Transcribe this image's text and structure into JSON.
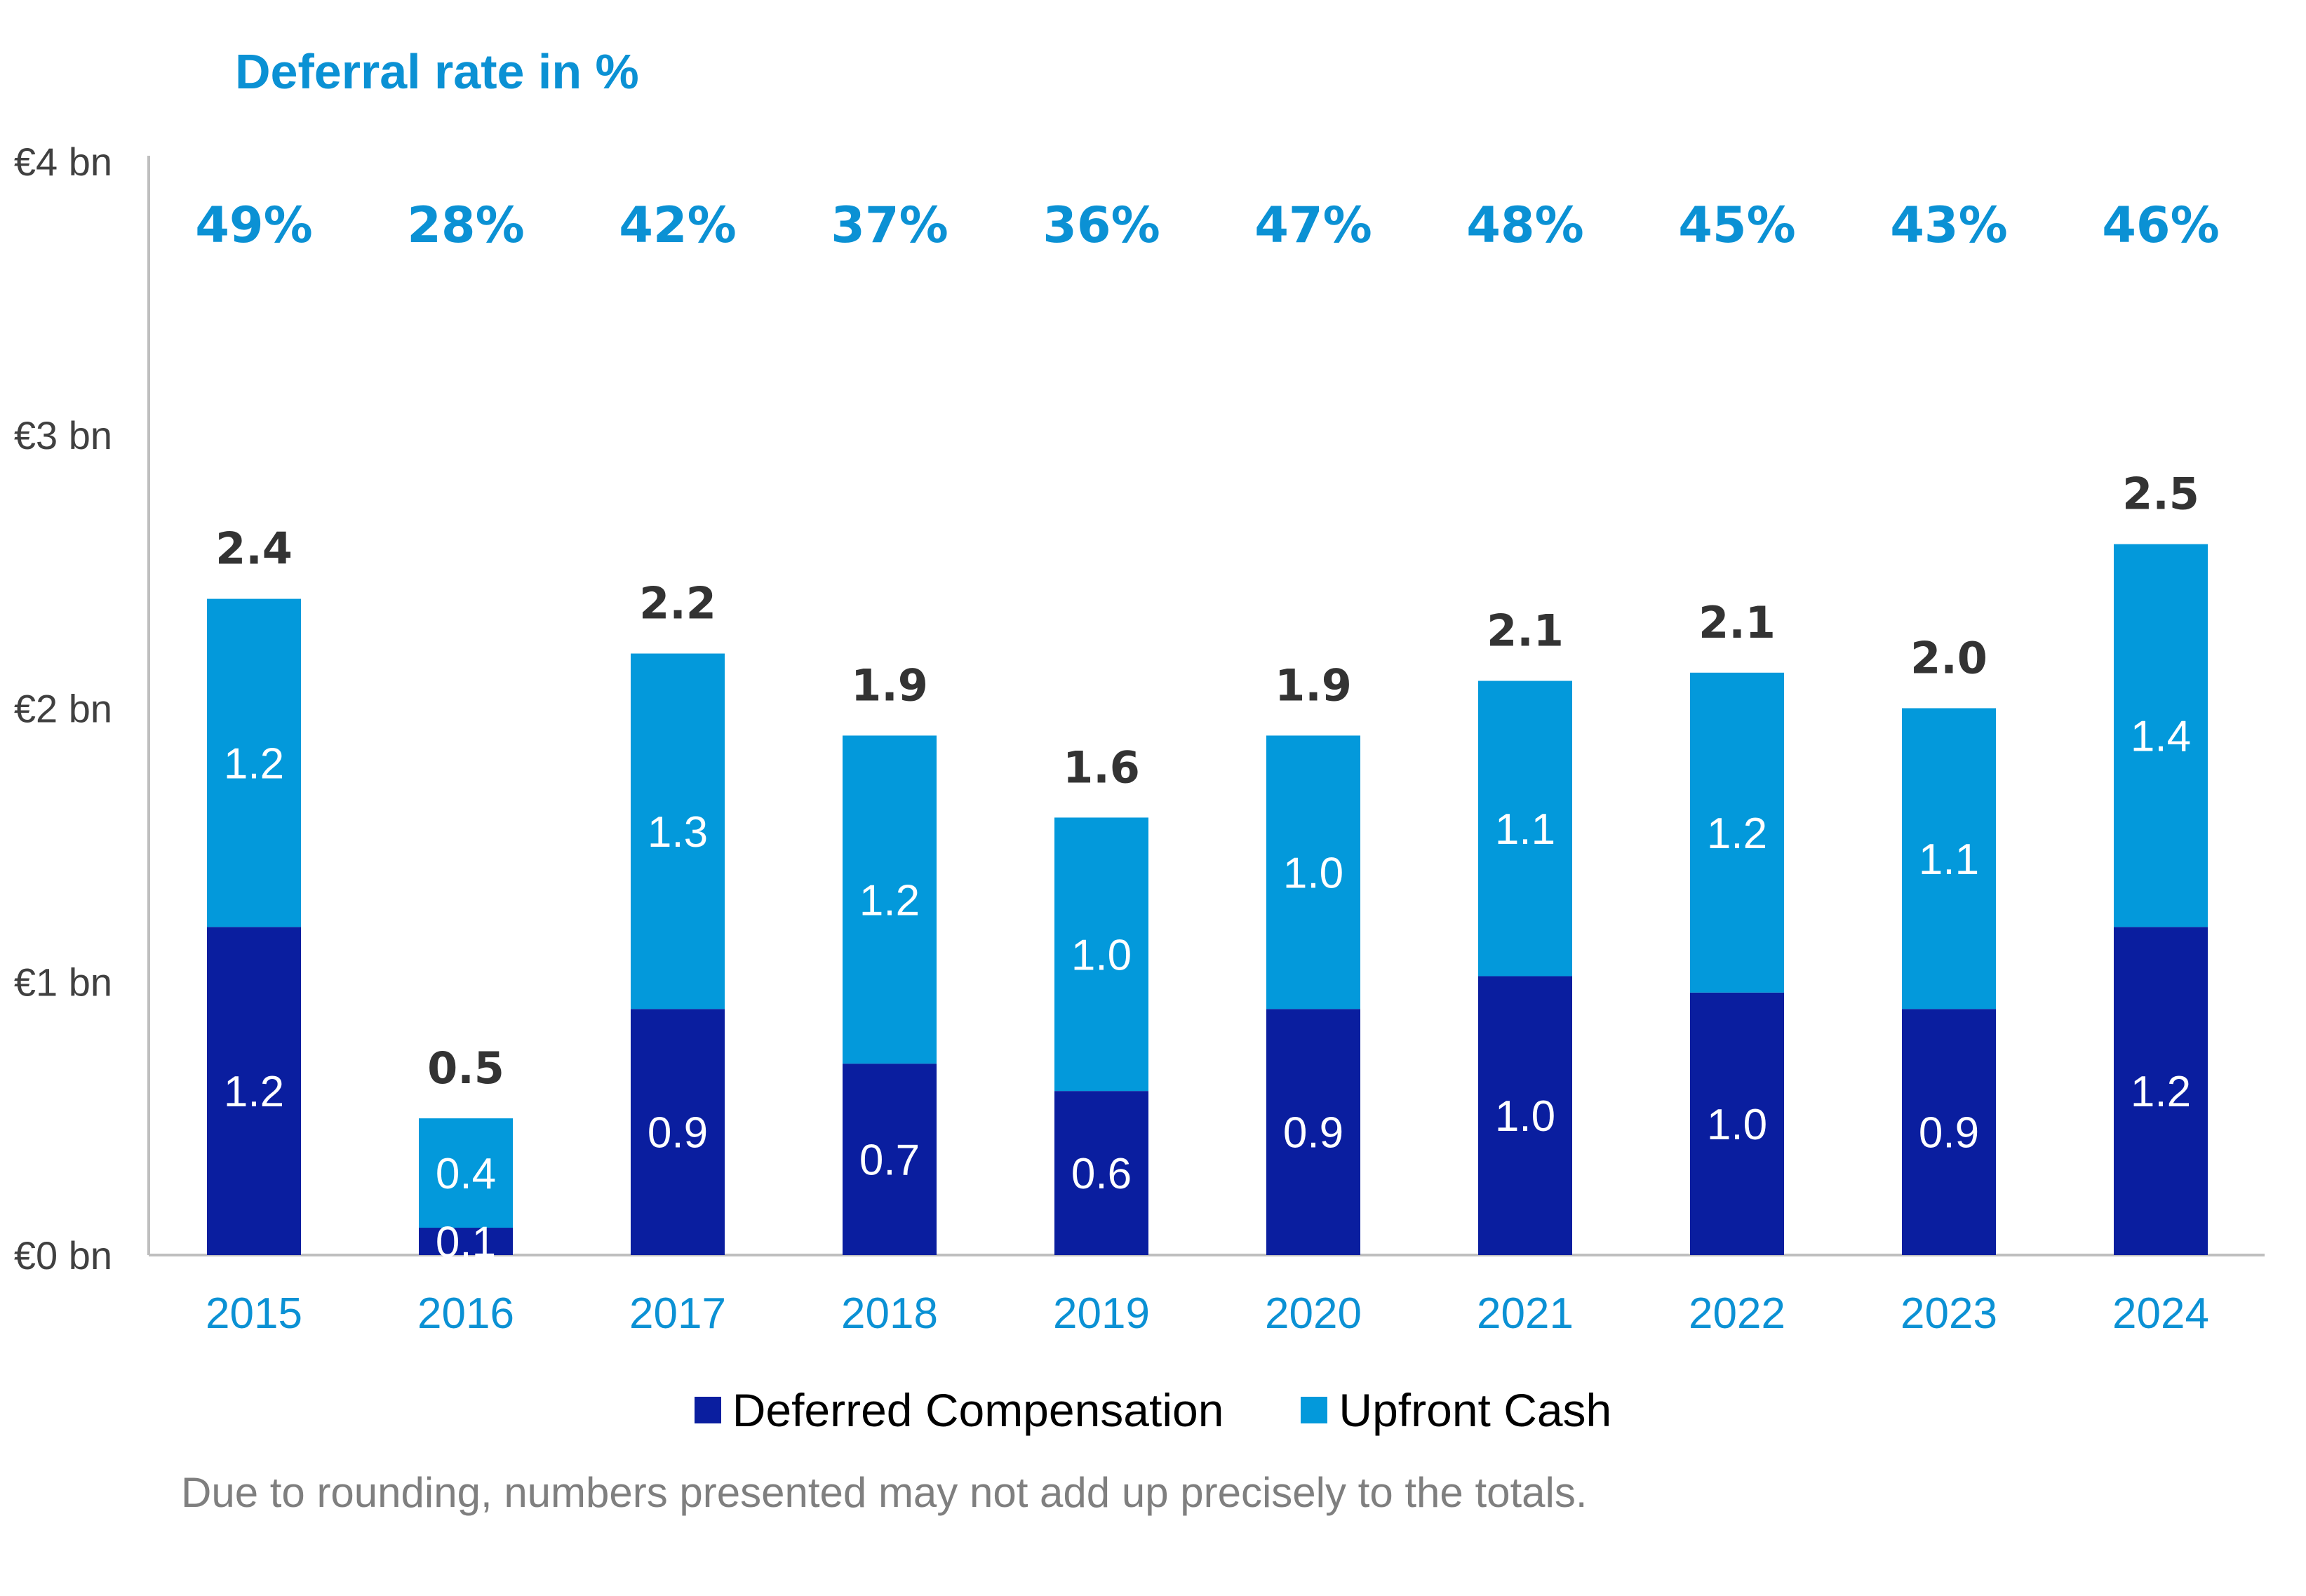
{
  "header": {
    "title": "Deferral rate in %"
  },
  "colors": {
    "deferred": "#0A1E9F",
    "upfront": "#0399DB",
    "accent": "#0B91D4",
    "total_label": "#333333",
    "axis": "#BFBFBF",
    "axis_text": "#404040"
  },
  "chart_data": {
    "type": "bar",
    "stacked": true,
    "categories": [
      "2015",
      "2016",
      "2017",
      "2018",
      "2019",
      "2020",
      "2021",
      "2022",
      "2023",
      "2024"
    ],
    "series": [
      {
        "name": "Deferred Compensation",
        "values": [
          1.2,
          0.1,
          0.9,
          0.7,
          0.6,
          0.9,
          1.0,
          1.0,
          0.9,
          1.2
        ],
        "labels": [
          "1.2",
          "0.1",
          "0.9",
          "0.7",
          "0.6",
          "0.9",
          "1.0",
          "1.0",
          "0.9",
          "1.2"
        ],
        "heights": [
          1.2,
          0.1,
          0.9,
          0.7,
          0.6,
          0.9,
          1.02,
          0.96,
          0.9,
          1.2
        ]
      },
      {
        "name": "Upfront Cash",
        "values": [
          1.2,
          0.4,
          1.3,
          1.2,
          1.0,
          1.0,
          1.1,
          1.2,
          1.1,
          1.4
        ],
        "labels": [
          "1.2",
          "0.4",
          "1.3",
          "1.2",
          "1.0",
          "1.0",
          "1.1",
          "1.2",
          "1.1",
          "1.4"
        ],
        "heights": [
          1.2,
          0.4,
          1.3,
          1.2,
          1.0,
          1.0,
          1.08,
          1.17,
          1.1,
          1.4
        ]
      }
    ],
    "totals": [
      "2.4",
      "0.5",
      "2.2",
      "1.9",
      "1.6",
      "1.9",
      "2.1",
      "2.1",
      "2.0",
      "2.5"
    ],
    "deferral_rates": [
      "49%",
      "28%",
      "42%",
      "37%",
      "36%",
      "47%",
      "48%",
      "45%",
      "43%",
      "46%"
    ],
    "y_ticks": [
      {
        "value": 0,
        "label": "€0 bn"
      },
      {
        "value": 1,
        "label": "€1 bn"
      },
      {
        "value": 2,
        "label": "€2 bn"
      },
      {
        "value": 3,
        "label": "€3 bn"
      },
      {
        "value": 4,
        "label": "€4 bn"
      }
    ],
    "ylim": [
      0,
      4
    ],
    "title": "Deferral rate in %",
    "xlabel": "",
    "ylabel": "",
    "legend_position": "bottom-center",
    "grid": false
  },
  "legend": {
    "items": [
      "Deferred Compensation",
      "Upfront Cash"
    ]
  },
  "footnote": "Due to rounding, numbers presented may not add up precisely to the totals."
}
